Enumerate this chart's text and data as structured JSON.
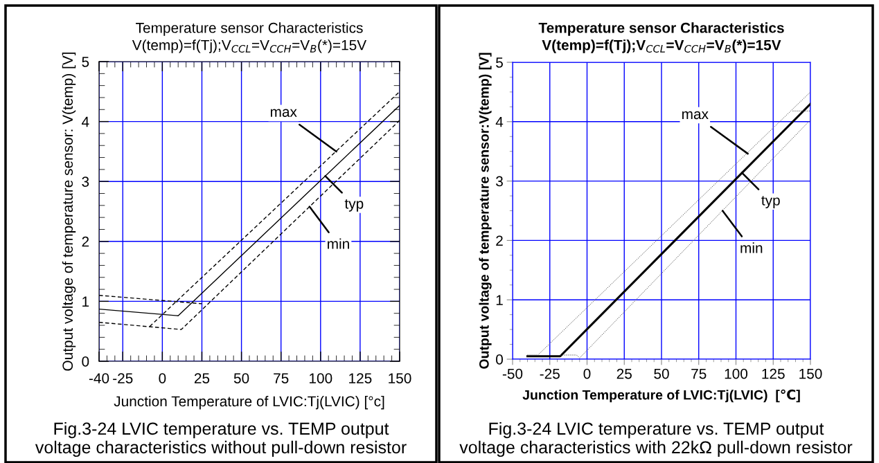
{
  "chart_data": [
    {
      "type": "line",
      "title": "Temperature sensor Characteristics",
      "subtitle": "V(temp)=f(Tj);V$_{CCL}$=V$_{CCH}$=V$_{B}$(*)=15V",
      "xlabel": "Junction Temperature of LVIC:Tj(LVIC) [°c]",
      "ylabel": "Output voltage of temperature sensor: V(temp) [V]",
      "xlim": [
        -40,
        150
      ],
      "xticks": [
        -40,
        -25,
        0,
        25,
        50,
        75,
        100,
        125,
        150
      ],
      "ylim": [
        0,
        5
      ],
      "yticks": [
        0,
        1,
        2,
        3,
        4,
        5
      ],
      "grid": true,
      "marker": "none",
      "series": [
        {
          "color": "#000000",
          "line_style": "solid",
          "x": [
            -40,
            10,
            150
          ],
          "values": [
            0.87,
            0.76,
            4.27
          ]
        },
        {
          "color": "#000000",
          "line_style": "dashed",
          "x": [
            -40,
            25
          ],
          "values": [
            1.1,
            0.96
          ]
        },
        {
          "color": "#000000",
          "line_style": "dashed",
          "x": [
            -8,
            150
          ],
          "values": [
            0.58,
            4.5
          ]
        },
        {
          "color": "#000000",
          "line_style": "dashed",
          "x": [
            -40,
            12,
            150
          ],
          "values": [
            0.65,
            0.53,
            4.02
          ]
        }
      ],
      "annotations": [
        {
          "text": "max",
          "x": 110,
          "y": 3.5
        },
        {
          "text": "typ",
          "x": 103,
          "y": 3.09
        },
        {
          "text": "min",
          "x": 93,
          "y": 2.58
        },
        "Fig.3-24 LVIC temperature vs. TEMP output\nvoltage characteristics without pull-down resistor"
      ]
    },
    {
      "type": "line",
      "title": "Temperature sensor Characteristics",
      "subtitle": "V(temp)=f(Tj);V$_{CCL}$=V$_{CCH}$=V$_{B}$(*)=15V",
      "xlabel": "Junction Temperature of LVIC:Tj(LVIC)  [℃]",
      "ylabel": "Output voltage of temperature sensor:V(temp) [V]",
      "xlim": [
        -50,
        150
      ],
      "xticks": [
        -50,
        -25,
        0,
        25,
        50,
        75,
        100,
        125,
        150
      ],
      "ylim": [
        0,
        5
      ],
      "yticks": [
        0,
        1,
        2,
        3,
        4,
        5
      ],
      "grid": true,
      "marker": "none",
      "series": [
        {
          "color": "#000000",
          "line_style": "solid",
          "x": [
            -40,
            -18,
            150
          ],
          "values": [
            0.05,
            0.05,
            4.3
          ]
        },
        {
          "color": "#555555",
          "line_style": "dotted",
          "x": [
            -40,
            -33,
            150
          ],
          "values": [
            0.07,
            0.07,
            4.5
          ]
        },
        {
          "color": "#555555",
          "line_style": "dotted",
          "x": [
            -18,
            -7,
            -5,
            150
          ],
          "values": [
            0.07,
            0.07,
            0.02,
            4.03
          ]
        },
        {
          "color": "#555555",
          "line_style": "dotted",
          "x": [
            138,
            150
          ],
          "values": [
            4.18,
            4.18
          ]
        }
      ],
      "annotations": [
        {
          "text": "max",
          "x": 108,
          "y": 3.46
        },
        {
          "text": "typ",
          "x": 104,
          "y": 3.14
        },
        {
          "text": "min",
          "x": 91,
          "y": 2.5
        },
        "Fig.3-24 LVIC temperature vs. TEMP output\nvoltage characteristics with 22kΩ pull-down resistor"
      ]
    }
  ]
}
